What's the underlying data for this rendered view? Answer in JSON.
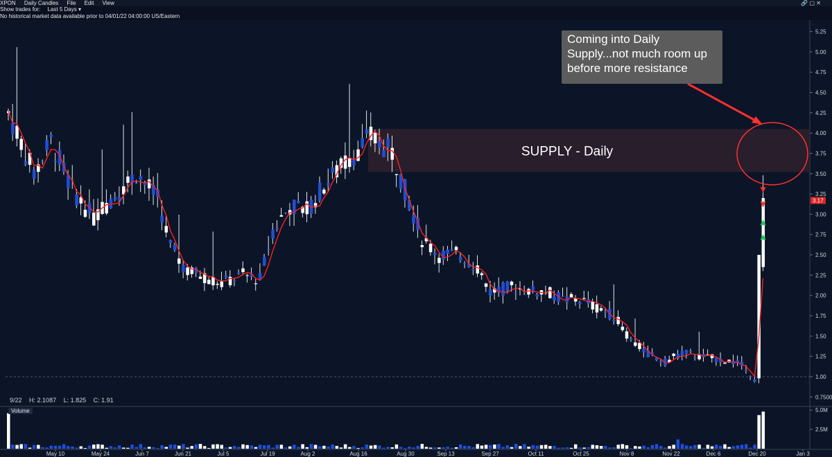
{
  "header": {
    "symbol": "XPON",
    "chart_mode": "Daily Candles",
    "menu": [
      "File",
      "Edit",
      "View"
    ],
    "show_trades_label": "Show trades for:",
    "show_trades_value": "Last 5 Days",
    "notice": "No historical market data available prior to 04/01/22 04:00:00 US/Eastern"
  },
  "annotation": {
    "text": "Coming into Daily Supply...not much room up before more resistance"
  },
  "ohlc": {
    "date": "9/22",
    "high": "H: 2.1087",
    "low": "L: 1.825",
    "close": "C: 1.91"
  },
  "volume_label": "Volume",
  "colors": {
    "background": "#0b1527",
    "up": "#ffffff",
    "down": "#1f4fd8",
    "ma": "#ff2020",
    "supply_zone": "#2b1f2c",
    "callout": "#ff3030"
  },
  "chart_data": [
    {
      "type": "candlestick",
      "title": "",
      "price_axis_ticks": [
        "5.25",
        "5.00",
        "4.75",
        "4.50",
        "4.25",
        "4.00",
        "3.75",
        "3.50",
        "3.25",
        "3.00",
        "2.75",
        "2.50",
        "2.25",
        "2.00",
        "1.75",
        "1.50",
        "1.25",
        "1.00",
        "0.7500"
      ],
      "x_ticks": [
        "May 10",
        "May 24",
        "Jun 7",
        "Jun 21",
        "Jul 5",
        "Jul 19",
        "Aug 2",
        "Aug 16",
        "Aug 30",
        "Sep 13",
        "Sep 27",
        "Oct 11",
        "Oct 25",
        "Nov 8",
        "Nov 22",
        "Dec 6",
        "Dec 20",
        "Jan 3"
      ],
      "last_price_label": "3.17",
      "zone": {
        "label": "SUPPLY - Daily",
        "from": 3.52,
        "to": 4.05
      },
      "reference_line": 1.0,
      "ylim": [
        0.65,
        5.4
      ],
      "anchors": [
        [
          0,
          4.25
        ],
        [
          6,
          3.5
        ],
        [
          10,
          3.9
        ],
        [
          15,
          3.3
        ],
        [
          20,
          2.95
        ],
        [
          25,
          3.25
        ],
        [
          30,
          3.5
        ],
        [
          35,
          3.2
        ],
        [
          38,
          2.6
        ],
        [
          42,
          2.3
        ],
        [
          45,
          2.25
        ],
        [
          50,
          2.15
        ],
        [
          55,
          2.25
        ],
        [
          59,
          2.2
        ],
        [
          62,
          2.8
        ],
        [
          66,
          3.1
        ],
        [
          70,
          3.05
        ],
        [
          74,
          3.35
        ],
        [
          80,
          3.7
        ],
        [
          85,
          3.95
        ],
        [
          90,
          3.75
        ],
        [
          93,
          3.3
        ],
        [
          97,
          2.7
        ],
        [
          101,
          2.5
        ],
        [
          106,
          2.5
        ],
        [
          110,
          2.35
        ],
        [
          113,
          2.05
        ],
        [
          118,
          2.1
        ],
        [
          123,
          2.05
        ],
        [
          126,
          2.05
        ],
        [
          130,
          1.95
        ],
        [
          134,
          1.95
        ],
        [
          138,
          1.85
        ],
        [
          142,
          1.75
        ],
        [
          146,
          1.45
        ],
        [
          150,
          1.28
        ],
        [
          154,
          1.18
        ],
        [
          158,
          1.3
        ],
        [
          162,
          1.25
        ],
        [
          166,
          1.22
        ],
        [
          170,
          1.18
        ],
        [
          173,
          1.12
        ],
        [
          175,
          0.95
        ]
      ],
      "final_candles": [
        {
          "o": 0.98,
          "h": 2.5,
          "c": 2.5,
          "l": 0.92
        },
        {
          "o": 2.35,
          "h": 3.48,
          "c": 3.2,
          "l": 2.3
        }
      ],
      "ma_period": 3
    },
    {
      "type": "bar",
      "title": "Volume",
      "y_ticks": [
        "5.0M",
        "2.5M"
      ],
      "ylim": [
        0,
        5.2
      ],
      "note": "values in millions; last two sessions ~4.3M and ~4.8M"
    }
  ]
}
